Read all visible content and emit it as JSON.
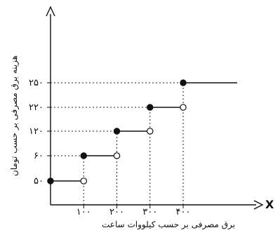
{
  "chart_data": {
    "type": "step",
    "x_axis_letter": "X",
    "xlabel": "برق مصرفی بر حسب کیلووات ساعت",
    "ylabel": "هزینه برق مصرفی بر حسب تومان",
    "x_ticks": [
      {
        "value": 100,
        "label": "۱۰۰"
      },
      {
        "value": 200,
        "label": "۲۰۰"
      },
      {
        "value": 300,
        "label": "۳۰۰"
      },
      {
        "value": 400,
        "label": "۴۰۰"
      }
    ],
    "y_ticks": [
      {
        "value": 50,
        "label": "۵۰"
      },
      {
        "value": 60,
        "label": "۶۰"
      },
      {
        "value": 120,
        "label": "۱۲۰"
      },
      {
        "value": 220,
        "label": "۲۲۰"
      },
      {
        "value": 250,
        "label": "۲۵۰"
      }
    ],
    "segments": [
      {
        "x_start": 0,
        "x_end": 100,
        "y": 50,
        "start_closed": true,
        "end_closed": false
      },
      {
        "x_start": 100,
        "x_end": 200,
        "y": 60,
        "start_closed": true,
        "end_closed": false
      },
      {
        "x_start": 200,
        "x_end": 300,
        "y": 120,
        "start_closed": true,
        "end_closed": false
      },
      {
        "x_start": 300,
        "x_end": 400,
        "y": 220,
        "start_closed": true,
        "end_closed": false
      },
      {
        "x_start": 400,
        "x_end": 570,
        "y": 250,
        "start_closed": true,
        "end_closed": null
      }
    ],
    "x_range": [
      0,
      620
    ],
    "grid": false
  }
}
